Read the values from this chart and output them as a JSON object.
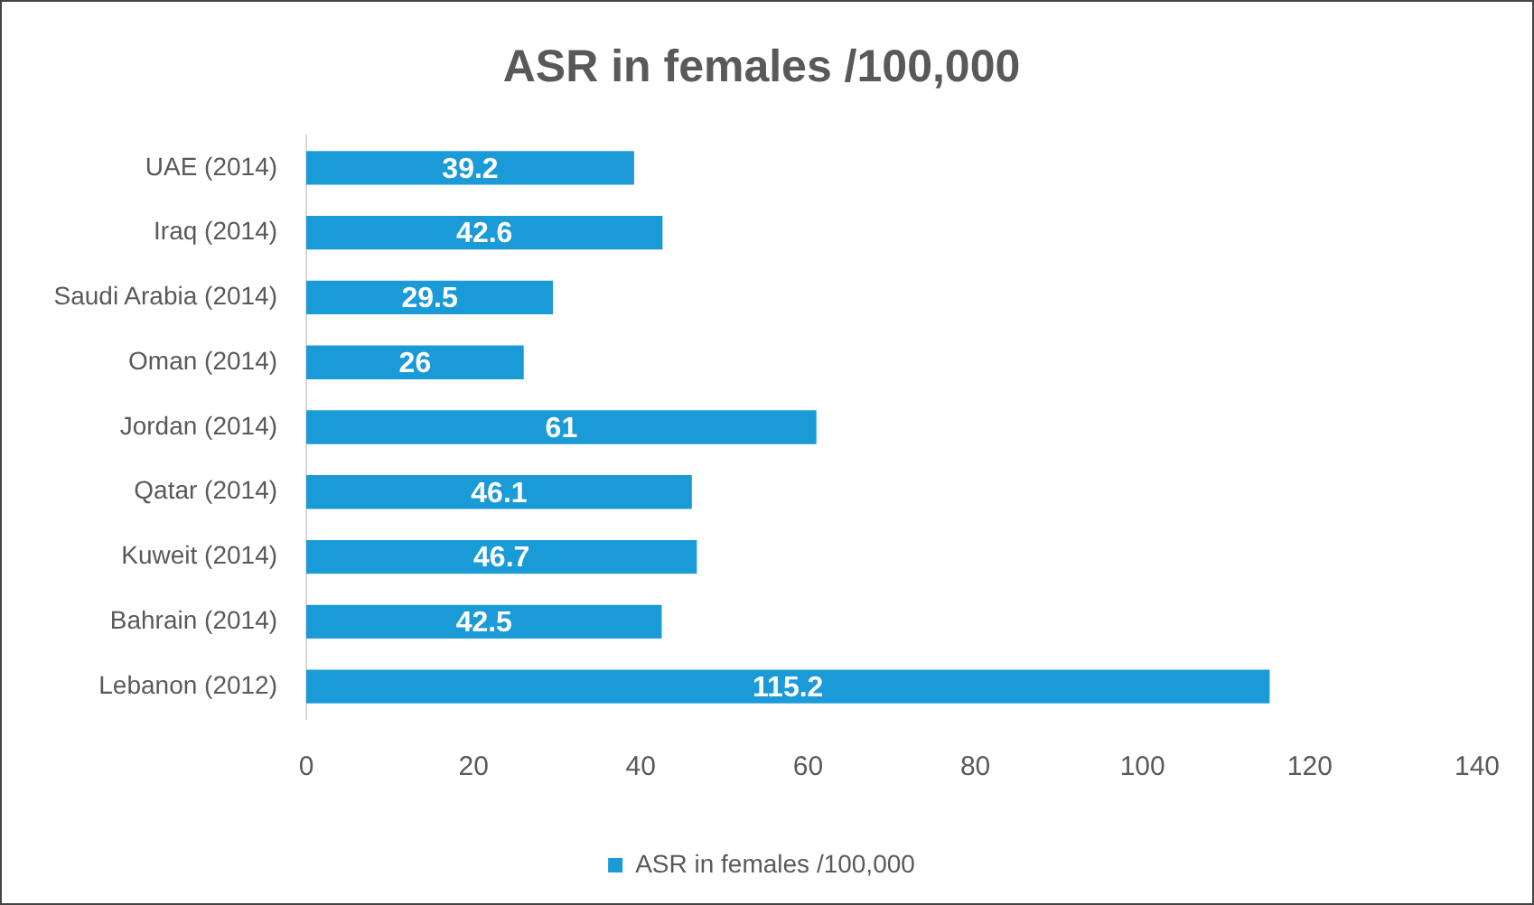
{
  "chart_data": {
    "type": "bar",
    "orientation": "horizontal",
    "title": "ASR in females /100,000",
    "categories": [
      "UAE (2014)",
      "Iraq (2014)",
      "Saudi Arabia (2014)",
      "Oman (2014)",
      "Jordan (2014)",
      "Qatar (2014)",
      "Kuweit (2014)",
      "Bahrain (2014)",
      "Lebanon (2012)"
    ],
    "series": [
      {
        "name": "ASR in females /100,000",
        "color": "#1b9ad8",
        "values": [
          39.2,
          42.6,
          29.5,
          26,
          61,
          46.1,
          46.7,
          42.5,
          115.2
        ]
      }
    ],
    "xlim": [
      0,
      140
    ],
    "xticks": [
      0,
      20,
      40,
      60,
      80,
      100,
      120,
      140
    ],
    "data_labels": true,
    "grid": false,
    "legend": "bottom"
  }
}
